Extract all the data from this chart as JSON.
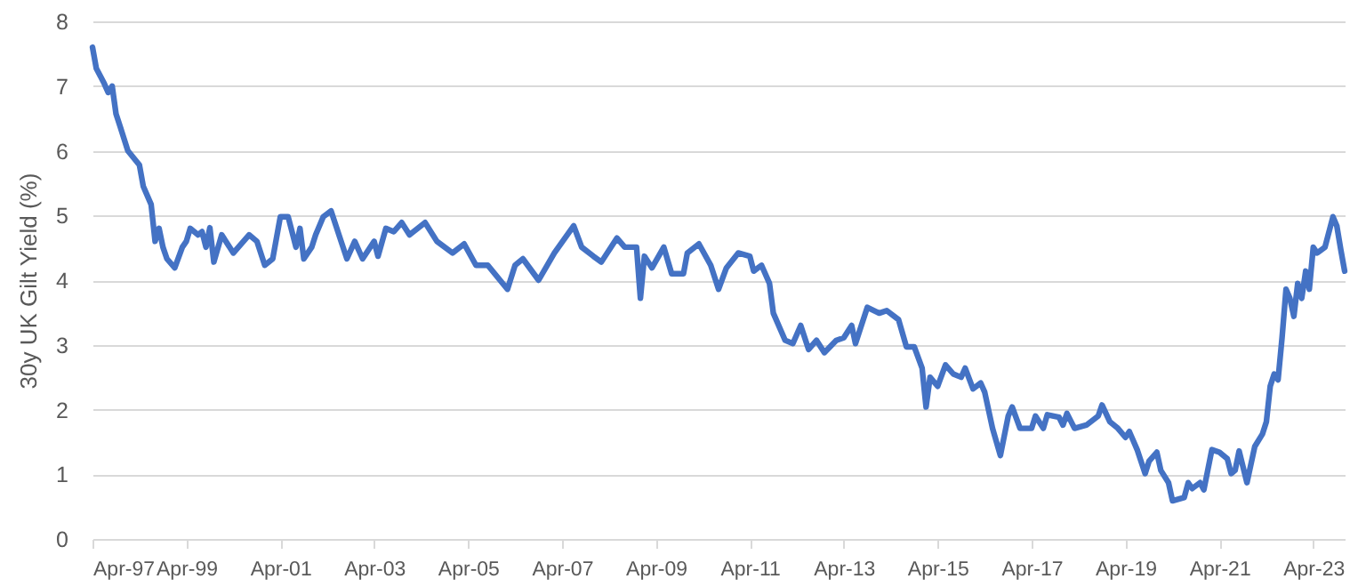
{
  "chart_data": {
    "type": "line",
    "ylabel": "30y UK Gilt Yield (%)",
    "x": [
      "1997-04",
      "1997-05",
      "1997-07",
      "1997-08",
      "1997-09",
      "1997-10",
      "1997-11",
      "1998-01",
      "1998-04",
      "1998-05",
      "1998-07",
      "1998-08",
      "1998-09",
      "1998-10",
      "1998-11",
      "1999-01",
      "1999-03",
      "1999-04",
      "1999-05",
      "1999-07",
      "1999-08",
      "1999-09",
      "1999-10",
      "1999-11",
      "2000-01",
      "2000-04",
      "2000-08",
      "2000-10",
      "2000-12",
      "2001-02",
      "2001-04",
      "2001-06",
      "2001-08",
      "2001-09",
      "2001-10",
      "2001-12",
      "2002-01",
      "2002-03",
      "2002-05",
      "2002-07",
      "2002-09",
      "2002-11",
      "2003-01",
      "2003-04",
      "2003-05",
      "2003-07",
      "2003-09",
      "2003-11",
      "2004-01",
      "2004-05",
      "2004-08",
      "2004-12",
      "2005-03",
      "2005-06",
      "2005-09",
      "2006-02",
      "2006-04",
      "2006-06",
      "2006-10",
      "2007-02",
      "2007-07",
      "2007-09",
      "2007-12",
      "2008-02",
      "2008-06",
      "2008-08",
      "2008-11",
      "2008-12",
      "2009-01",
      "2009-03",
      "2009-06",
      "2009-08",
      "2009-11",
      "2009-12",
      "2010-03",
      "2010-06",
      "2010-08",
      "2010-10",
      "2011-01",
      "2011-04",
      "2011-05",
      "2011-07",
      "2011-09",
      "2011-10",
      "2012-01",
      "2012-03",
      "2012-05",
      "2012-07",
      "2012-09",
      "2012-11",
      "2013-02",
      "2013-04",
      "2013-06",
      "2013-07",
      "2013-10",
      "2014-01",
      "2014-03",
      "2014-06",
      "2014-08",
      "2014-10",
      "2014-12",
      "2015-01",
      "2015-02",
      "2015-04",
      "2015-06",
      "2015-08",
      "2015-10",
      "2015-11",
      "2016-01",
      "2016-03",
      "2016-04",
      "2016-06",
      "2016-08",
      "2016-10",
      "2016-11",
      "2017-01",
      "2017-04",
      "2017-05",
      "2017-07",
      "2017-08",
      "2017-11",
      "2017-12",
      "2018-01",
      "2018-03",
      "2018-06",
      "2018-09",
      "2018-10",
      "2018-12",
      "2019-02",
      "2019-04",
      "2019-05",
      "2019-07",
      "2019-09",
      "2019-10",
      "2019-12",
      "2020-01",
      "2020-03",
      "2020-04",
      "2020-07",
      "2020-08",
      "2020-09",
      "2020-11",
      "2020-12",
      "2021-02",
      "2021-04",
      "2021-06",
      "2021-07",
      "2021-08",
      "2021-09",
      "2021-11",
      "2022-01",
      "2022-03",
      "2022-04",
      "2022-05",
      "2022-06",
      "2022-07",
      "2022-08",
      "2022-09",
      "2022-10",
      "2022-11",
      "2022-12",
      "2023-01",
      "2023-02",
      "2023-03",
      "2023-04",
      "2023-05",
      "2023-07",
      "2023-09",
      "2023-10",
      "2023-11",
      "2023-12"
    ],
    "series": [
      {
        "color": "#4472c4",
        "values": [
          7.6,
          7.27,
          7.04,
          6.9,
          7.0,
          6.57,
          6.38,
          6.0,
          5.78,
          5.45,
          5.17,
          4.6,
          4.8,
          4.51,
          4.33,
          4.19,
          4.51,
          4.6,
          4.8,
          4.7,
          4.75,
          4.51,
          4.81,
          4.28,
          4.7,
          4.42,
          4.7,
          4.6,
          4.23,
          4.33,
          4.98,
          4.98,
          4.51,
          4.8,
          4.33,
          4.51,
          4.7,
          4.98,
          5.07,
          4.7,
          4.33,
          4.6,
          4.33,
          4.6,
          4.37,
          4.8,
          4.75,
          4.89,
          4.7,
          4.89,
          4.6,
          4.42,
          4.56,
          4.23,
          4.23,
          3.86,
          4.23,
          4.33,
          4.0,
          4.42,
          4.84,
          4.51,
          4.37,
          4.28,
          4.65,
          4.51,
          4.51,
          3.72,
          4.37,
          4.19,
          4.51,
          4.1,
          4.1,
          4.42,
          4.56,
          4.23,
          3.86,
          4.19,
          4.42,
          4.37,
          4.14,
          4.23,
          3.95,
          3.49,
          3.07,
          3.02,
          3.3,
          2.93,
          3.07,
          2.88,
          3.07,
          3.11,
          3.3,
          3.02,
          3.58,
          3.49,
          3.53,
          3.39,
          2.97,
          2.97,
          2.64,
          2.04,
          2.5,
          2.36,
          2.69,
          2.55,
          2.5,
          2.64,
          2.32,
          2.41,
          2.27,
          1.71,
          1.29,
          1.9,
          2.04,
          1.71,
          1.71,
          1.9,
          1.71,
          1.92,
          1.88,
          1.76,
          1.94,
          1.71,
          1.76,
          1.9,
          2.07,
          1.81,
          1.71,
          1.57,
          1.66,
          1.38,
          1.01,
          1.2,
          1.34,
          1.06,
          0.87,
          0.59,
          0.64,
          0.87,
          0.78,
          0.87,
          0.76,
          1.38,
          1.34,
          1.24,
          1.01,
          1.06,
          1.36,
          0.87,
          1.43,
          1.62,
          1.81,
          2.36,
          2.55,
          2.46,
          3.11,
          3.86,
          3.72,
          3.44,
          3.95,
          3.72,
          4.14,
          3.86,
          4.51,
          4.42,
          4.51,
          4.98,
          4.84,
          4.47,
          4.14
        ]
      }
    ],
    "xlim": [
      "1997-04",
      "2023-12"
    ],
    "xticks": [
      {
        "value": "1997-04",
        "label": "Apr-97"
      },
      {
        "value": "1999-04",
        "label": "Apr-99"
      },
      {
        "value": "2001-04",
        "label": "Apr-01"
      },
      {
        "value": "2003-04",
        "label": "Apr-03"
      },
      {
        "value": "2005-04",
        "label": "Apr-05"
      },
      {
        "value": "2007-04",
        "label": "Apr-07"
      },
      {
        "value": "2009-04",
        "label": "Apr-09"
      },
      {
        "value": "2011-04",
        "label": "Apr-11"
      },
      {
        "value": "2013-04",
        "label": "Apr-13"
      },
      {
        "value": "2015-04",
        "label": "Apr-15"
      },
      {
        "value": "2017-04",
        "label": "Apr-17"
      },
      {
        "value": "2019-04",
        "label": "Apr-19"
      },
      {
        "value": "2021-04",
        "label": "Apr-21"
      },
      {
        "value": "2023-04",
        "label": "Apr-23"
      }
    ],
    "ylim": [
      0,
      8
    ],
    "yticks": [
      0,
      1,
      2,
      3,
      4,
      5,
      6,
      7,
      8
    ],
    "grid": "y",
    "marker": "none",
    "line_style": "solid"
  }
}
